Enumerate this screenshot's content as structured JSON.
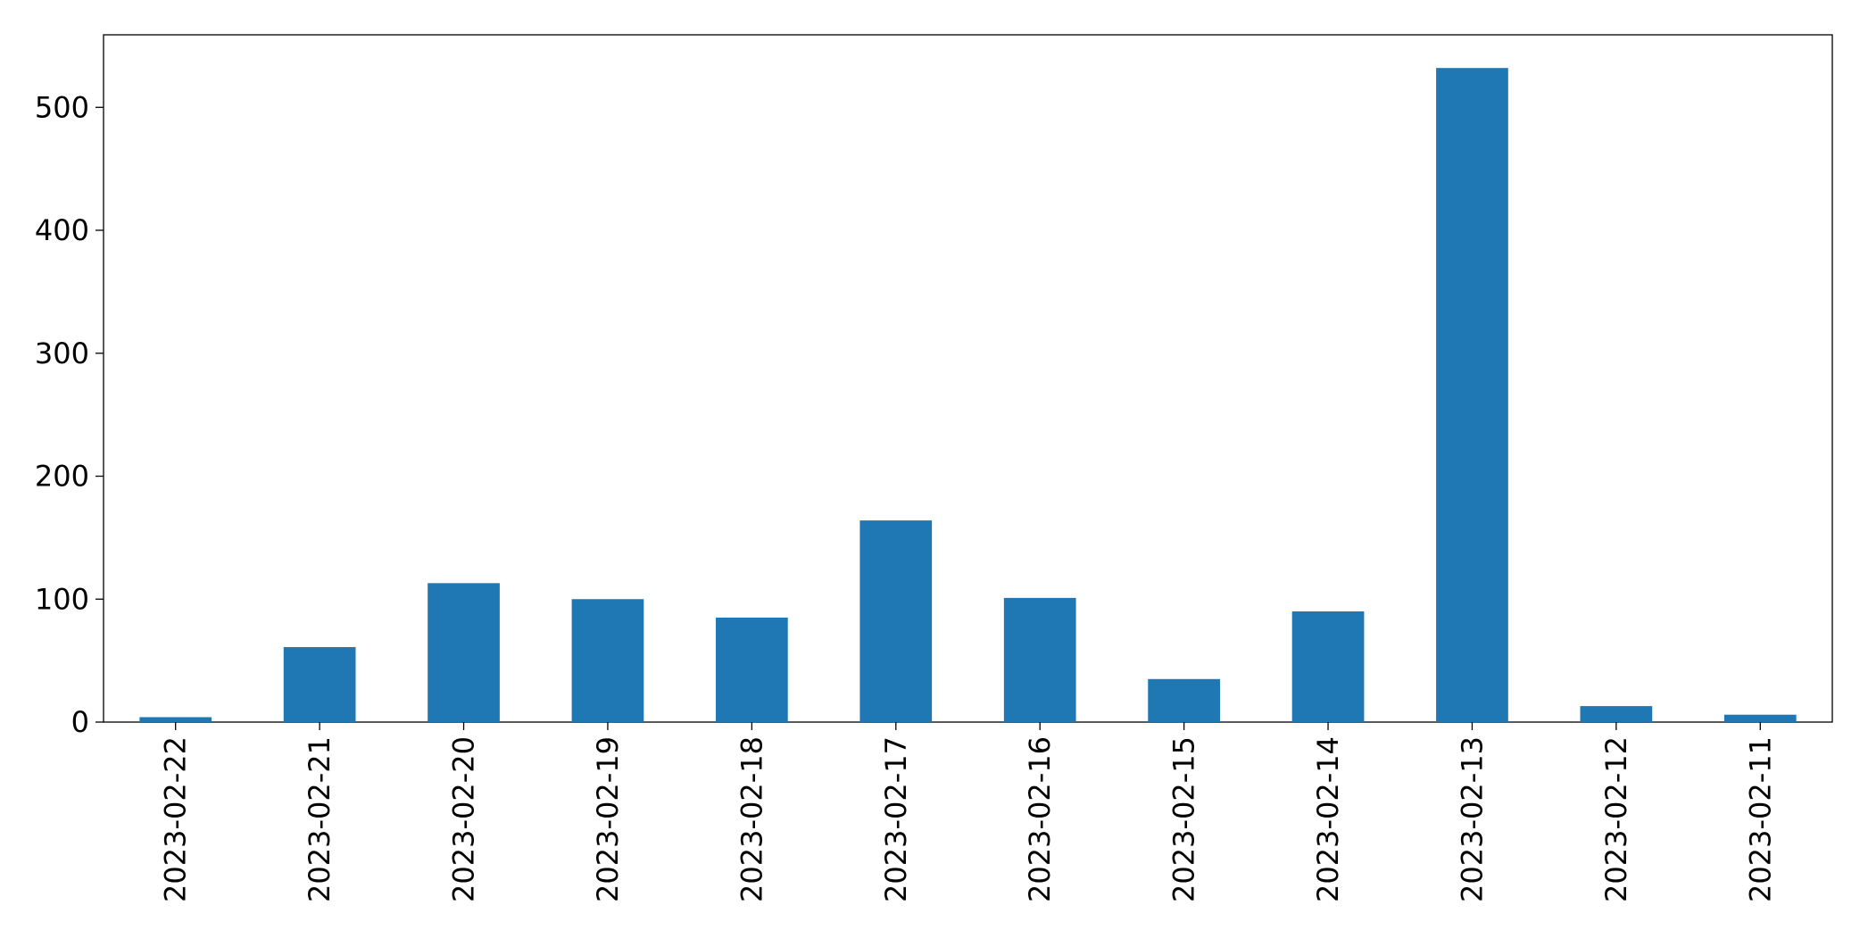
{
  "chart_data": {
    "type": "bar",
    "categories": [
      "2023-02-22",
      "2023-02-21",
      "2023-02-20",
      "2023-02-19",
      "2023-02-18",
      "2023-02-17",
      "2023-02-16",
      "2023-02-15",
      "2023-02-14",
      "2023-02-13",
      "2023-02-12",
      "2023-02-11"
    ],
    "values": [
      4,
      61,
      113,
      100,
      85,
      164,
      101,
      35,
      90,
      532,
      13,
      6
    ],
    "color": "#1f77b4",
    "ylim": [
      0,
      559
    ],
    "yticks": [
      0,
      100,
      200,
      300,
      400,
      500
    ],
    "grid": false
  }
}
